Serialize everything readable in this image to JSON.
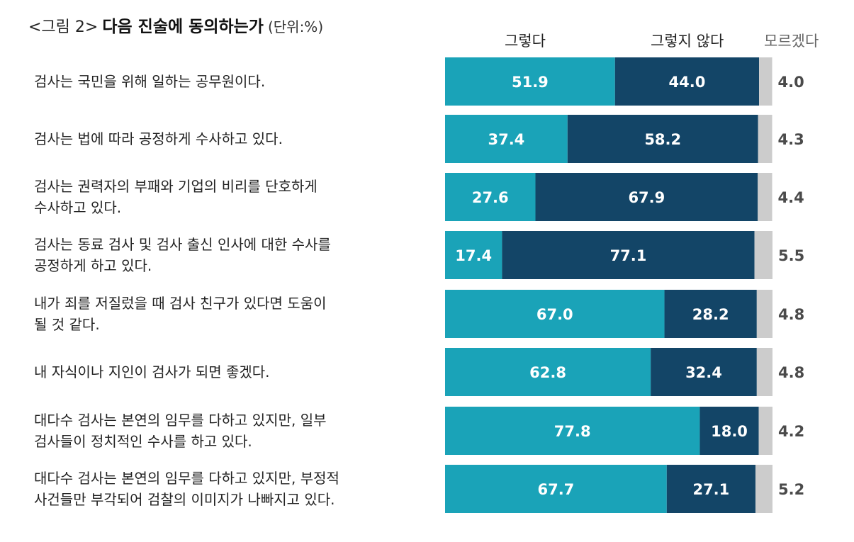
{
  "title": {
    "prefix": "<그림 2>",
    "main": "다음 진술에 동의하는가",
    "unit": "(단위:%)"
  },
  "chart_data": {
    "type": "bar",
    "stacked": true,
    "orientation": "horizontal",
    "xlim": [
      0,
      100
    ],
    "colors": {
      "agree": "#1aa3b8",
      "disagree": "#134567",
      "dont_know": "#cccccc"
    },
    "legend_labels": [
      "그렇다",
      "그렇지 않다",
      "모르겠다"
    ],
    "categories": [
      "검사는 국민을 위해 일하는 공무원이다.",
      "검사는 법에 따라 공정하게 수사하고 있다.",
      "검사는 권력자의 부패와 기업의 비리를 단호하게\n수사하고 있다.",
      "검사는 동료 검사 및 검사 출신 인사에 대한 수사를\n공정하게 하고 있다.",
      "내가 죄를 저질렀을 때 검사 친구가 있다면 도움이\n될 것 같다.",
      "내 자식이나 지인이 검사가 되면 좋겠다.",
      "대다수 검사는 본연의 임무를 다하고 있지만, 일부\n검사들이 정치적인 수사를 하고 있다.",
      "대다수 검사는 본연의 임무를 다하고 있지만, 부정적\n사건들만 부각되어 검찰의 이미지가 나빠지고 있다."
    ],
    "series": [
      {
        "name": "그렇다",
        "values": [
          51.9,
          37.4,
          27.6,
          17.4,
          67.0,
          62.8,
          77.8,
          67.7
        ]
      },
      {
        "name": "그렇지 않다",
        "values": [
          44.0,
          58.2,
          67.9,
          77.1,
          28.2,
          32.4,
          18.0,
          27.1
        ]
      },
      {
        "name": "모르겠다",
        "values": [
          4.0,
          4.3,
          4.4,
          5.5,
          4.8,
          4.8,
          4.2,
          5.2
        ]
      }
    ]
  }
}
